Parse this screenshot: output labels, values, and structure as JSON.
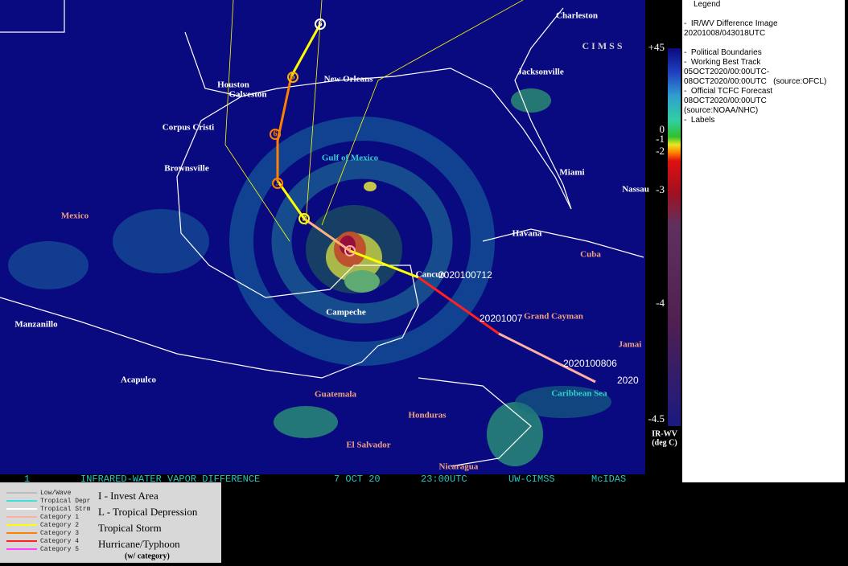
{
  "map": {
    "labels": [
      "Charleston",
      "Jacksonville",
      "Houston",
      "Galveston",
      "New Orleans",
      "Corpus Cristi",
      "Brownsville",
      "Gulf of Mexico",
      "Mexico",
      "Miami",
      "Nassau",
      "Havana",
      "Cuba",
      "Cancun",
      "Campeche",
      "Manzanillo",
      "Acapulco",
      "Guatemala",
      "Honduras",
      "El Salvador",
      "Nicaragua",
      "Grand Cayman",
      "Jamai",
      "Caribbean Sea"
    ],
    "track_times": [
      "2020100712",
      "20201007",
      "2020100806",
      "2020"
    ],
    "track_symbols": [
      "6",
      "6",
      "6",
      "3",
      "2",
      "1"
    ],
    "logo": "CIMSS"
  },
  "banner": [
    "1",
    "INFRARED-WATER VAPOR DIFFERENCE",
    "7 OCT 20",
    "23:00UTC",
    "UW-CIMSS",
    "McIDAS"
  ],
  "colorbar": {
    "ticks": [
      "+45",
      "0",
      "-1",
      "-2",
      "-3",
      "-4",
      "-4.5"
    ],
    "unit_line1": "IR-WV",
    "unit_line2": "(deg C)"
  },
  "legend": [
    "Legend",
    "-  IR/WV Difference Image",
    "20201008/043018UTC",
    "-  Political Boundaries",
    "-  Working Best Track",
    "05OCT2020/00:00UTC-",
    "08OCT2020/00:00UTC   (source:OFCL)",
    "-  Official TCFC Forecast",
    "08OCT2020/00:00UTC",
    "(source:NOAA/NHC)",
    "-  Labels"
  ],
  "key": {
    "lines": [
      "Low/Wave",
      "Tropical Depr",
      "Tropical Strm",
      "Category 1",
      "Category 2",
      "Category 3",
      "Category 4",
      "Category 5"
    ],
    "symbols": [
      "I - Invest Area",
      "L - Tropical Depression",
      "Tropical Storm",
      "Hurricane/Typhoon",
      "(w/ category)"
    ]
  }
}
